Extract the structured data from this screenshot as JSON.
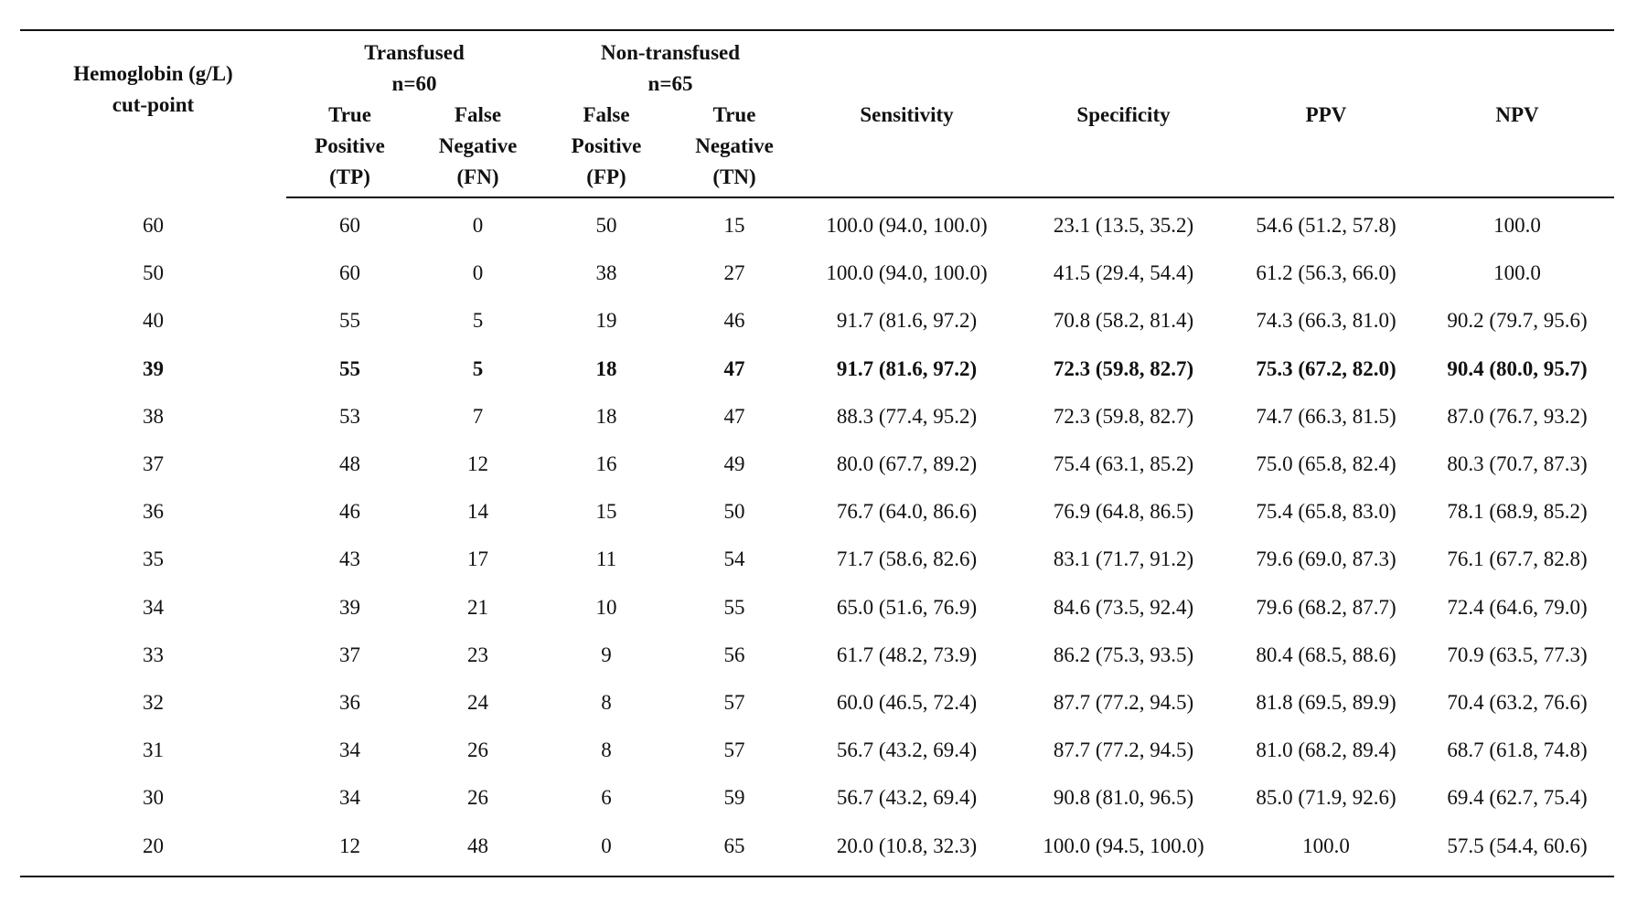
{
  "table": {
    "header": {
      "hemoglobin_line1": "Hemoglobin (g/L)",
      "hemoglobin_line2": "cut-point",
      "transfused_line1": "Transfused",
      "transfused_line2": "n=60",
      "nontransfused_line1": "Non-transfused",
      "nontransfused_line2": "n=65",
      "tp": [
        "True",
        "Positive",
        "(TP)"
      ],
      "fn": [
        "False",
        "Negative",
        "(FN)"
      ],
      "fp": [
        "False",
        "Positive",
        "(FP)"
      ],
      "tn": [
        "True",
        "Negative",
        "(TN)"
      ],
      "sensitivity": "Sensitivity",
      "specificity": "Specificity",
      "ppv": "PPV",
      "npv": "NPV"
    },
    "rows": [
      {
        "cut": "60",
        "tp": "60",
        "fn": "0",
        "fp": "50",
        "tn": "15",
        "sens": "100.0 (94.0, 100.0)",
        "spec": "23.1 (13.5, 35.2)",
        "ppv": "54.6 (51.2, 57.8)",
        "npv": "100.0",
        "bold": false
      },
      {
        "cut": "50",
        "tp": "60",
        "fn": "0",
        "fp": "38",
        "tn": "27",
        "sens": "100.0 (94.0, 100.0)",
        "spec": "41.5 (29.4, 54.4)",
        "ppv": "61.2 (56.3, 66.0)",
        "npv": "100.0",
        "bold": false
      },
      {
        "cut": "40",
        "tp": "55",
        "fn": "5",
        "fp": "19",
        "tn": "46",
        "sens": "91.7 (81.6, 97.2)",
        "spec": "70.8 (58.2, 81.4)",
        "ppv": "74.3 (66.3, 81.0)",
        "npv": "90.2 (79.7, 95.6)",
        "bold": false
      },
      {
        "cut": "39",
        "tp": "55",
        "fn": "5",
        "fp": "18",
        "tn": "47",
        "sens": "91.7 (81.6, 97.2)",
        "spec": "72.3 (59.8, 82.7)",
        "ppv": "75.3 (67.2, 82.0)",
        "npv": "90.4 (80.0, 95.7)",
        "bold": true
      },
      {
        "cut": "38",
        "tp": "53",
        "fn": "7",
        "fp": "18",
        "tn": "47",
        "sens": "88.3 (77.4, 95.2)",
        "spec": "72.3 (59.8, 82.7)",
        "ppv": "74.7 (66.3, 81.5)",
        "npv": "87.0 (76.7, 93.2)",
        "bold": false
      },
      {
        "cut": "37",
        "tp": "48",
        "fn": "12",
        "fp": "16",
        "tn": "49",
        "sens": "80.0 (67.7, 89.2)",
        "spec": "75.4 (63.1, 85.2)",
        "ppv": "75.0 (65.8, 82.4)",
        "npv": "80.3 (70.7, 87.3)",
        "bold": false
      },
      {
        "cut": "36",
        "tp": "46",
        "fn": "14",
        "fp": "15",
        "tn": "50",
        "sens": "76.7 (64.0, 86.6)",
        "spec": "76.9 (64.8, 86.5)",
        "ppv": "75.4 (65.8, 83.0)",
        "npv": "78.1 (68.9, 85.2)",
        "bold": false
      },
      {
        "cut": "35",
        "tp": "43",
        "fn": "17",
        "fp": "11",
        "tn": "54",
        "sens": "71.7 (58.6, 82.6)",
        "spec": "83.1 (71.7, 91.2)",
        "ppv": "79.6 (69.0, 87.3)",
        "npv": "76.1 (67.7, 82.8)",
        "bold": false
      },
      {
        "cut": "34",
        "tp": "39",
        "fn": "21",
        "fp": "10",
        "tn": "55",
        "sens": "65.0 (51.6, 76.9)",
        "spec": "84.6 (73.5, 92.4)",
        "ppv": "79.6 (68.2, 87.7)",
        "npv": "72.4 (64.6, 79.0)",
        "bold": false
      },
      {
        "cut": "33",
        "tp": "37",
        "fn": "23",
        "fp": "9",
        "tn": "56",
        "sens": "61.7 (48.2, 73.9)",
        "spec": "86.2 (75.3, 93.5)",
        "ppv": "80.4 (68.5, 88.6)",
        "npv": "70.9 (63.5, 77.3)",
        "bold": false
      },
      {
        "cut": "32",
        "tp": "36",
        "fn": "24",
        "fp": "8",
        "tn": "57",
        "sens": "60.0 (46.5, 72.4)",
        "spec": "87.7 (77.2, 94.5)",
        "ppv": "81.8 (69.5, 89.9)",
        "npv": "70.4 (63.2, 76.6)",
        "bold": false
      },
      {
        "cut": "31",
        "tp": "34",
        "fn": "26",
        "fp": "8",
        "tn": "57",
        "sens": "56.7 (43.2, 69.4)",
        "spec": "87.7 (77.2, 94.5)",
        "ppv": "81.0 (68.2, 89.4)",
        "npv": "68.7 (61.8, 74.8)",
        "bold": false
      },
      {
        "cut": "30",
        "tp": "34",
        "fn": "26",
        "fp": "6",
        "tn": "59",
        "sens": "56.7 (43.2, 69.4)",
        "spec": "90.8 (81.0, 96.5)",
        "ppv": "85.0 (71.9, 92.6)",
        "npv": "69.4 (62.7, 75.4)",
        "bold": false
      },
      {
        "cut": "20",
        "tp": "12",
        "fn": "48",
        "fp": "0",
        "tn": "65",
        "sens": "20.0 (10.8, 32.3)",
        "spec": "100.0 (94.5, 100.0)",
        "ppv": "100.0",
        "npv": "57.5 (54.4, 60.6)",
        "bold": false
      }
    ]
  }
}
